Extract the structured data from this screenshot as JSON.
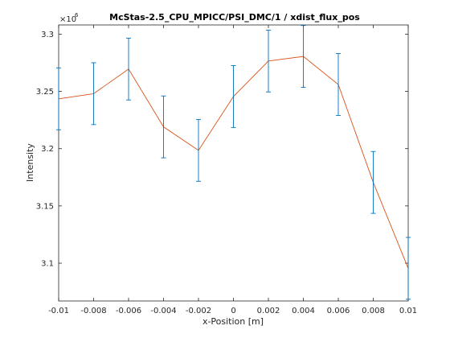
{
  "chart_data": {
    "type": "line",
    "title": "McStas-2.5_CPU_MPICC/PSI_DMC/1 / xdist_flux_pos",
    "xlabel": "x-Position [m]",
    "ylabel": "Intensity",
    "y_exponent_base": "×10",
    "y_exponent_power": "6",
    "xlim": [
      -0.01,
      0.01
    ],
    "ylim": [
      3.067,
      3.308
    ],
    "x_ticks": [
      -0.01,
      -0.008,
      -0.006,
      -0.004,
      -0.002,
      0,
      0.002,
      0.004,
      0.006,
      0.008,
      0.01
    ],
    "x_tick_labels": [
      "-0.01",
      "-0.008",
      "-0.006",
      "-0.004",
      "-0.002",
      "0",
      "0.002",
      "0.004",
      "0.006",
      "0.008",
      "0.01"
    ],
    "y_ticks": [
      3.1,
      3.15,
      3.2,
      3.25,
      3.3
    ],
    "y_tick_labels": [
      "3.1",
      "3.15",
      "3.2",
      "3.25",
      "3.3"
    ],
    "grid": false,
    "series": [
      {
        "x": [
          -0.01,
          -0.008,
          -0.006,
          -0.004,
          -0.002,
          0,
          0.002,
          0.004,
          0.006,
          0.008,
          0.01
        ],
        "y": [
          3.2435,
          3.248,
          3.2695,
          3.219,
          3.1985,
          3.2455,
          3.2765,
          3.2805,
          3.256,
          3.1705,
          3.0955
        ],
        "err": [
          0.027,
          0.027,
          0.027,
          0.027,
          0.027,
          0.027,
          0.027,
          0.027,
          0.027,
          0.027,
          0.027
        ],
        "line_color": "#d95319",
        "errorbar_color": "#0072bd"
      }
    ]
  }
}
